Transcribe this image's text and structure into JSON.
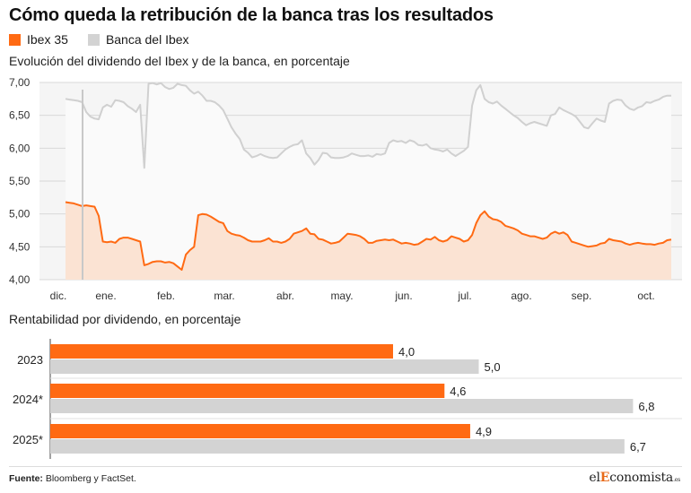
{
  "title": "Cómo queda la retribución de la banca tras los resultados",
  "legend": [
    {
      "label": "Ibex 35",
      "color": "#ff6a13"
    },
    {
      "label": "Banca del Ibex",
      "color": "#d3d3d3"
    }
  ],
  "line_subtitle": "Evolución del dividendo del Ibex y de la banca, en porcentaje",
  "bar_subtitle": "Rentabilidad por dividendo, en porcentaje",
  "source_label": "Fuente:",
  "source_text": "Bloomberg y FactSet.",
  "logo": {
    "pre": "el",
    "accent": "E",
    "post": "conomista",
    "suffix": ".es"
  },
  "chart_data": [
    {
      "type": "area",
      "ylim": [
        4.0,
        7.0
      ],
      "y_ticks": [
        "7,00",
        "6,50",
        "6,00",
        "5,50",
        "5,00",
        "4,50",
        "4,00"
      ],
      "x_ticks": [
        "dic.",
        "ene.",
        "feb.",
        "mar.",
        "abr.",
        "may.",
        "jun.",
        "jul.",
        "ago.",
        "sep.",
        "oct."
      ],
      "grid": true,
      "series": [
        {
          "name": "Banca del Ibex",
          "color": "#d3d3d3",
          "values": [
            6.75,
            6.74,
            6.73,
            6.72,
            6.7,
            6.55,
            6.48,
            6.45,
            6.44,
            6.62,
            6.66,
            6.63,
            6.73,
            6.72,
            6.7,
            6.64,
            6.6,
            6.55,
            6.66,
            5.7,
            6.98,
            6.99,
            6.97,
            6.99,
            6.93,
            6.9,
            6.92,
            6.98,
            6.96,
            6.95,
            6.88,
            6.83,
            6.86,
            6.8,
            6.72,
            6.72,
            6.7,
            6.65,
            6.58,
            6.45,
            6.32,
            6.22,
            6.14,
            5.98,
            5.93,
            5.86,
            5.88,
            5.91,
            5.88,
            5.86,
            5.85,
            5.86,
            5.92,
            5.98,
            6.02,
            6.05,
            6.06,
            6.12,
            5.92,
            5.85,
            5.75,
            5.82,
            5.93,
            5.92,
            5.86,
            5.85,
            5.85,
            5.86,
            5.88,
            5.92,
            5.9,
            5.88,
            5.88,
            5.89,
            5.87,
            5.91,
            5.9,
            5.92,
            6.08,
            6.12,
            6.1,
            6.11,
            6.08,
            6.12,
            6.1,
            6.05,
            6.04,
            6.06,
            6.0,
            5.98,
            5.97,
            5.95,
            5.98,
            5.92,
            5.88,
            5.92,
            5.96,
            6.02,
            6.65,
            6.88,
            6.96,
            6.75,
            6.7,
            6.68,
            6.71,
            6.65,
            6.6,
            6.55,
            6.5,
            6.46,
            6.4,
            6.35,
            6.38,
            6.4,
            6.38,
            6.36,
            6.34,
            6.5,
            6.52,
            6.62,
            6.58,
            6.55,
            6.52,
            6.48,
            6.4,
            6.32,
            6.3,
            6.38,
            6.45,
            6.42,
            6.4,
            6.68,
            6.72,
            6.74,
            6.73,
            6.65,
            6.6,
            6.58,
            6.62,
            6.64,
            6.7,
            6.69,
            6.72,
            6.74,
            6.78,
            6.8,
            6.8
          ]
        },
        {
          "name": "Ibex 35",
          "color": "#ff6a13",
          "values": [
            5.18,
            5.17,
            5.16,
            5.14,
            5.12,
            5.13,
            5.12,
            5.11,
            4.97,
            4.58,
            4.57,
            4.58,
            4.56,
            4.62,
            4.64,
            4.64,
            4.62,
            4.6,
            4.58,
            4.22,
            4.24,
            4.27,
            4.28,
            4.28,
            4.26,
            4.27,
            4.25,
            4.2,
            4.15,
            4.38,
            4.45,
            4.5,
            4.98,
            5.0,
            4.99,
            4.96,
            4.92,
            4.88,
            4.86,
            4.74,
            4.7,
            4.68,
            4.67,
            4.64,
            4.6,
            4.58,
            4.58,
            4.58,
            4.6,
            4.63,
            4.58,
            4.58,
            4.56,
            4.58,
            4.62,
            4.7,
            4.72,
            4.74,
            4.78,
            4.7,
            4.69,
            4.62,
            4.61,
            4.58,
            4.55,
            4.56,
            4.58,
            4.64,
            4.7,
            4.69,
            4.68,
            4.66,
            4.62,
            4.56,
            4.56,
            4.59,
            4.6,
            4.61,
            4.6,
            4.61,
            4.58,
            4.55,
            4.56,
            4.55,
            4.53,
            4.54,
            4.58,
            4.62,
            4.61,
            4.65,
            4.6,
            4.58,
            4.6,
            4.66,
            4.64,
            4.62,
            4.58,
            4.6,
            4.68,
            4.86,
            4.98,
            5.04,
            4.96,
            4.92,
            4.91,
            4.88,
            4.82,
            4.8,
            4.78,
            4.75,
            4.7,
            4.68,
            4.66,
            4.66,
            4.64,
            4.62,
            4.64,
            4.7,
            4.73,
            4.7,
            4.72,
            4.68,
            4.58,
            4.56,
            4.54,
            4.52,
            4.5,
            4.51,
            4.52,
            4.55,
            4.56,
            4.62,
            4.6,
            4.59,
            4.58,
            4.55,
            4.53,
            4.55,
            4.56,
            4.55,
            4.54,
            4.54,
            4.53,
            4.55,
            4.56,
            4.6,
            4.61
          ]
        }
      ]
    },
    {
      "type": "bar",
      "orientation": "horizontal",
      "categories": [
        "2023",
        "2024*",
        "2025*"
      ],
      "xlim": [
        0,
        8.5
      ],
      "series": [
        {
          "name": "Ibex 35",
          "color": "#ff6a13",
          "values": [
            4.0,
            4.6,
            4.9
          ],
          "labels": [
            "4,0",
            "4,6",
            "4,9"
          ]
        },
        {
          "name": "Banca del Ibex",
          "color": "#d3d3d3",
          "values": [
            5.0,
            6.8,
            6.7
          ],
          "labels": [
            "5,0",
            "6,8",
            "6,7"
          ]
        }
      ]
    }
  ]
}
